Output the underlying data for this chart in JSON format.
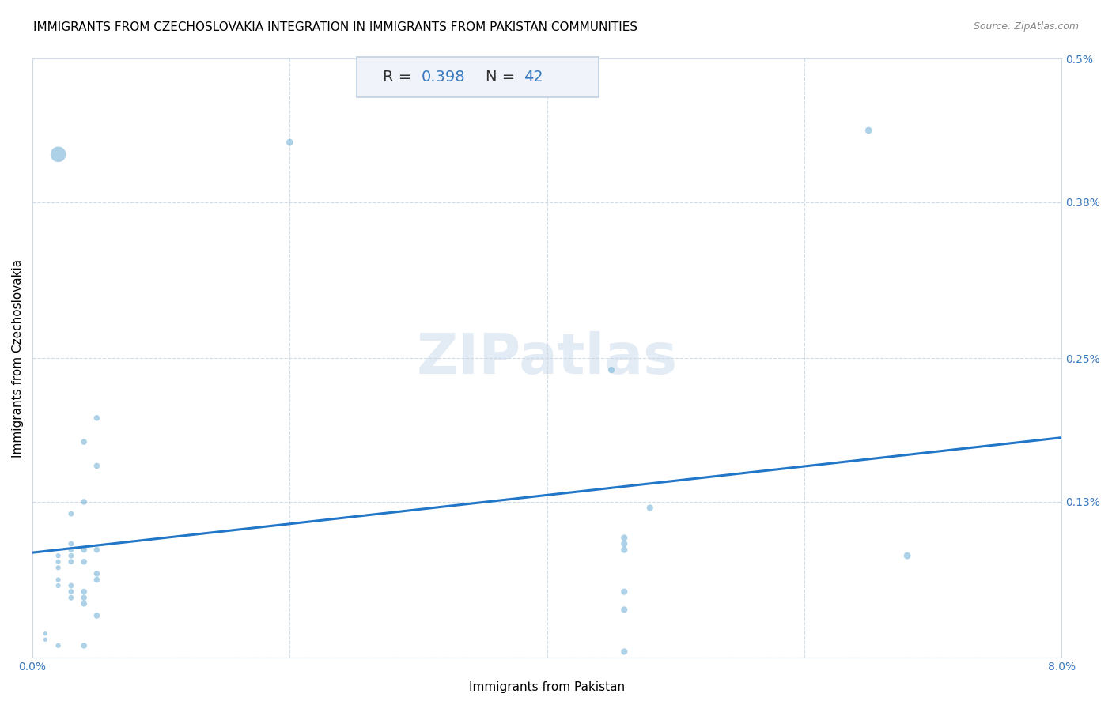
{
  "title": "IMMIGRANTS FROM CZECHOSLOVAKIA INTEGRATION IN IMMIGRANTS FROM PAKISTAN COMMUNITIES",
  "source": "Source: ZipAtlas.com",
  "xlabel": "Immigrants from Pakistan",
  "ylabel": "Immigrants from Czechoslovakia",
  "R": 0.398,
  "N": 42,
  "xlim": [
    0.0,
    0.08
  ],
  "ylim": [
    0.0,
    0.005
  ],
  "xticks": [
    0.0,
    0.02,
    0.04,
    0.06,
    0.08
  ],
  "xtick_labels": [
    "0.0%",
    "",
    "",
    "",
    "8.0%"
  ],
  "yticks": [
    0.0,
    0.0013,
    0.0025,
    0.0038,
    0.005
  ],
  "ytick_labels": [
    "",
    "0.13%",
    "0.25%",
    "0.38%",
    "0.5%"
  ],
  "scatter_color": "#6aaed6",
  "scatter_alpha": 0.55,
  "line_color": "#2176c7",
  "background_color": "#ffffff",
  "grid_color": "#d0dce8",
  "watermark": "ZIPatlas",
  "annotation_box_color": "#f0f4fa",
  "annotation_border_color": "#c0cfe0",
  "points": [
    [
      0.001,
      0.00015
    ],
    [
      0.001,
      0.0002
    ],
    [
      0.002,
      0.0008
    ],
    [
      0.002,
      0.00085
    ],
    [
      0.002,
      0.00075
    ],
    [
      0.002,
      0.00065
    ],
    [
      0.002,
      0.0006
    ],
    [
      0.002,
      0.0001
    ],
    [
      0.003,
      0.0012
    ],
    [
      0.003,
      0.00095
    ],
    [
      0.003,
      0.0009
    ],
    [
      0.003,
      0.00085
    ],
    [
      0.003,
      0.0008
    ],
    [
      0.003,
      0.0006
    ],
    [
      0.003,
      0.00055
    ],
    [
      0.003,
      0.0005
    ],
    [
      0.004,
      0.0018
    ],
    [
      0.004,
      0.0013
    ],
    [
      0.004,
      0.0009
    ],
    [
      0.004,
      0.0008
    ],
    [
      0.004,
      0.00055
    ],
    [
      0.004,
      0.0005
    ],
    [
      0.004,
      0.00045
    ],
    [
      0.004,
      0.0001
    ],
    [
      0.005,
      0.002
    ],
    [
      0.005,
      0.0016
    ],
    [
      0.005,
      0.0009
    ],
    [
      0.005,
      0.0007
    ],
    [
      0.005,
      0.00065
    ],
    [
      0.005,
      0.00035
    ],
    [
      0.045,
      0.0024
    ],
    [
      0.046,
      0.001
    ],
    [
      0.046,
      0.00095
    ],
    [
      0.046,
      0.0009
    ],
    [
      0.046,
      0.0004
    ],
    [
      0.046,
      5e-05
    ],
    [
      0.046,
      0.00055
    ],
    [
      0.048,
      0.00125
    ],
    [
      0.02,
      0.0043
    ],
    [
      0.065,
      0.0044
    ],
    [
      0.068,
      0.00085
    ],
    [
      0.002,
      0.0042
    ]
  ],
  "point_sizes": [
    15,
    15,
    20,
    20,
    20,
    20,
    20,
    20,
    25,
    25,
    25,
    25,
    25,
    25,
    25,
    25,
    30,
    30,
    30,
    30,
    30,
    30,
    30,
    30,
    30,
    30,
    30,
    30,
    30,
    30,
    35,
    35,
    35,
    35,
    35,
    35,
    35,
    35,
    40,
    40,
    40,
    200
  ],
  "title_fontsize": 11,
  "axis_label_fontsize": 11,
  "tick_fontsize": 10,
  "annotation_fontsize": 14
}
